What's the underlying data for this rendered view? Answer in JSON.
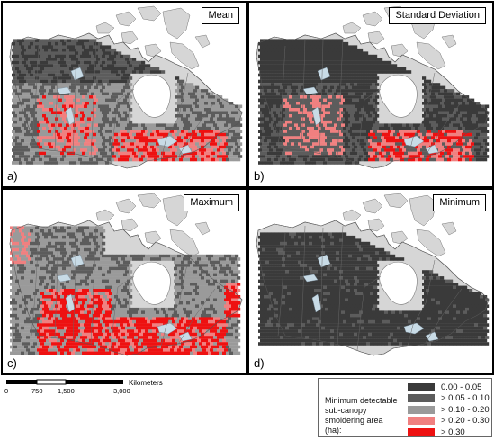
{
  "panels": [
    {
      "title": "Mean",
      "label": "a)",
      "stat": "mean"
    },
    {
      "title": "Standard Deviation",
      "label": "b)",
      "stat": "sd"
    },
    {
      "title": "Maximum",
      "label": "c)",
      "stat": "max"
    },
    {
      "title": "Minimum",
      "label": "d)",
      "stat": "min"
    }
  ],
  "scalebar": {
    "unit": "Kilometers",
    "ticks": [
      "0",
      "750",
      "1,500",
      "3,000"
    ],
    "tick_values_km": [
      0,
      750,
      1500,
      3000
    ]
  },
  "legend": {
    "title": "Minimum detectable sub-canopy smoldering area (ha):",
    "classes": [
      {
        "label": "0.00 - 0.05",
        "color": "#3a3a3a"
      },
      {
        "label": "> 0.05 - 0.10",
        "color": "#5c5c5c"
      },
      {
        "label": "> 0.10 - 0.20",
        "color": "#9a9a9a"
      },
      {
        "label": "> 0.20 - 0.30",
        "color": "#f08080"
      },
      {
        "label": "> 0.30",
        "color": "#ee1111"
      }
    ]
  },
  "colors": {
    "land": "#d6d6d6",
    "water": "#c8dbe6",
    "border": "#666666"
  }
}
